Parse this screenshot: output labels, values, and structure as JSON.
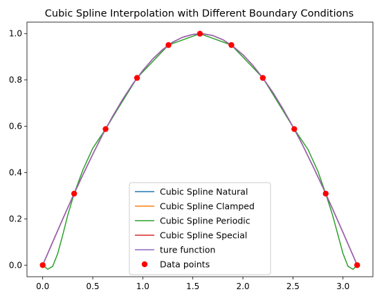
{
  "chart_data": {
    "type": "line",
    "title": "Cubic Spline Interpolation with Different Boundary Conditions",
    "xlabel": "",
    "ylabel": "",
    "xlim": [
      -0.157,
      3.299
    ],
    "ylim": [
      -0.05,
      1.05
    ],
    "x_ticks": [
      0.0,
      0.5,
      1.0,
      1.5,
      2.0,
      2.5,
      3.0
    ],
    "x_tick_labels": [
      "0.0",
      "0.5",
      "1.0",
      "1.5",
      "2.0",
      "2.5",
      "3.0"
    ],
    "y_ticks": [
      0.0,
      0.2,
      0.4,
      0.6,
      0.8,
      1.0
    ],
    "y_tick_labels": [
      "0.0",
      "0.2",
      "0.4",
      "0.6",
      "0.8",
      "1.0"
    ],
    "grid": false,
    "legend_position": "lower-center",
    "series": [
      {
        "name": "Cubic Spline Natural",
        "color": "#1f77b4",
        "x": [
          0.0,
          0.1,
          0.2,
          0.3,
          0.4,
          0.5,
          0.6,
          0.7,
          0.8,
          0.9,
          1.0,
          1.1,
          1.2,
          1.3,
          1.4,
          1.5,
          1.6,
          1.7,
          1.8,
          1.9,
          2.0,
          2.1,
          2.2,
          2.3,
          2.4,
          2.5,
          2.6,
          2.7,
          2.8,
          2.9,
          3.0,
          3.1,
          3.1416
        ],
        "y": [
          0.0,
          0.1,
          0.199,
          0.296,
          0.389,
          0.479,
          0.565,
          0.644,
          0.717,
          0.783,
          0.841,
          0.891,
          0.932,
          0.964,
          0.985,
          0.997,
          1.0,
          0.992,
          0.974,
          0.946,
          0.909,
          0.863,
          0.808,
          0.746,
          0.675,
          0.598,
          0.516,
          0.427,
          0.335,
          0.239,
          0.141,
          0.042,
          0.0
        ]
      },
      {
        "name": "Cubic Spline Clamped",
        "color": "#ff7f0e",
        "x": [
          0.0,
          0.1,
          0.2,
          0.3,
          0.4,
          0.5,
          0.6,
          0.7,
          0.8,
          0.9,
          1.0,
          1.1,
          1.2,
          1.3,
          1.4,
          1.5,
          1.6,
          1.7,
          1.8,
          1.9,
          2.0,
          2.1,
          2.2,
          2.3,
          2.4,
          2.5,
          2.6,
          2.7,
          2.8,
          2.9,
          3.0,
          3.1,
          3.1416
        ],
        "y": [
          0.0,
          0.1,
          0.199,
          0.296,
          0.389,
          0.479,
          0.565,
          0.644,
          0.717,
          0.783,
          0.841,
          0.891,
          0.932,
          0.964,
          0.985,
          0.997,
          1.0,
          0.992,
          0.974,
          0.946,
          0.909,
          0.863,
          0.808,
          0.746,
          0.675,
          0.598,
          0.516,
          0.427,
          0.335,
          0.239,
          0.141,
          0.042,
          0.0
        ]
      },
      {
        "name": "Cubic Spline Periodic",
        "color": "#2ca02c",
        "x": [
          0.0,
          0.05,
          0.1,
          0.15,
          0.2,
          0.25,
          0.3142,
          0.4,
          0.5,
          0.6283,
          0.75,
          0.9425,
          1.2566,
          1.5708,
          1.885,
          2.1991,
          2.39,
          2.5133,
          2.65,
          2.75,
          2.8274,
          2.9,
          2.95,
          3.0,
          3.05,
          3.1,
          3.1416
        ],
        "y": [
          0.0,
          -0.018,
          -0.005,
          0.05,
          0.13,
          0.215,
          0.309,
          0.41,
          0.505,
          0.588,
          0.675,
          0.809,
          0.951,
          1.0,
          0.951,
          0.809,
          0.675,
          0.588,
          0.5,
          0.405,
          0.309,
          0.21,
          0.13,
          0.05,
          -0.005,
          -0.018,
          0.0
        ]
      },
      {
        "name": "Cubic Spline Special",
        "color": "#d62728",
        "x": [
          0.0,
          0.1,
          0.2,
          0.3,
          0.4,
          0.5,
          0.6,
          0.7,
          0.8,
          0.9,
          1.0,
          1.1,
          1.2,
          1.3,
          1.4,
          1.5,
          1.6,
          1.7,
          1.8,
          1.9,
          2.0,
          2.1,
          2.2,
          2.3,
          2.4,
          2.5,
          2.6,
          2.7,
          2.8,
          2.9,
          3.0,
          3.1,
          3.1416
        ],
        "y": [
          0.0,
          0.1,
          0.199,
          0.296,
          0.389,
          0.479,
          0.565,
          0.644,
          0.717,
          0.783,
          0.841,
          0.891,
          0.932,
          0.964,
          0.985,
          0.997,
          1.0,
          0.992,
          0.974,
          0.946,
          0.909,
          0.863,
          0.808,
          0.746,
          0.675,
          0.598,
          0.516,
          0.427,
          0.335,
          0.239,
          0.141,
          0.042,
          0.0
        ]
      },
      {
        "name": "ture function",
        "color": "#9467bd",
        "x": [
          0.0,
          0.1,
          0.2,
          0.3,
          0.4,
          0.5,
          0.6,
          0.7,
          0.8,
          0.9,
          1.0,
          1.1,
          1.2,
          1.3,
          1.4,
          1.5,
          1.6,
          1.7,
          1.8,
          1.9,
          2.0,
          2.1,
          2.2,
          2.3,
          2.4,
          2.5,
          2.6,
          2.7,
          2.8,
          2.9,
          3.0,
          3.1,
          3.1416
        ],
        "y": [
          0.0,
          0.1,
          0.199,
          0.296,
          0.389,
          0.479,
          0.565,
          0.644,
          0.717,
          0.783,
          0.841,
          0.891,
          0.932,
          0.964,
          0.985,
          0.997,
          1.0,
          0.992,
          0.974,
          0.946,
          0.909,
          0.863,
          0.808,
          0.746,
          0.675,
          0.598,
          0.516,
          0.427,
          0.335,
          0.239,
          0.141,
          0.042,
          0.0
        ]
      }
    ],
    "points": {
      "name": "Data points",
      "color": "#ff0000",
      "x": [
        0.0,
        0.3142,
        0.6283,
        0.9425,
        1.2566,
        1.5708,
        1.885,
        2.1991,
        2.5133,
        2.8274,
        3.1416
      ],
      "y": [
        0.0,
        0.309,
        0.588,
        0.809,
        0.951,
        1.0,
        0.951,
        0.809,
        0.588,
        0.309,
        0.0
      ]
    }
  }
}
